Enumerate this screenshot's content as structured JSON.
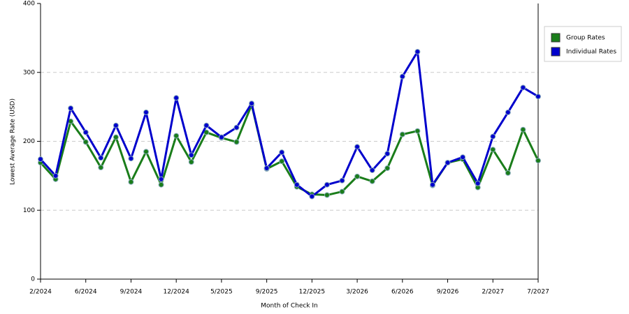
{
  "chart_data": {
    "type": "line",
    "categories": [
      "2/2024",
      null,
      null,
      "6/2024",
      null,
      null,
      "9/2024",
      null,
      null,
      "12/2024",
      null,
      null,
      "5/2025",
      null,
      null,
      "9/2025",
      null,
      null,
      "12/2025",
      null,
      null,
      "3/2026",
      null,
      null,
      "6/2026",
      null,
      null,
      "9/2026",
      null,
      null,
      "2/2027",
      null,
      null,
      "7/2027"
    ],
    "series": [
      {
        "name": "Group Rates",
        "color": "#1a7d1a",
        "values": [
          169,
          145,
          229,
          199,
          162,
          206,
          141,
          185,
          137,
          208,
          170,
          213,
          205,
          199,
          253,
          160,
          171,
          134,
          123,
          122,
          127,
          149,
          142,
          161,
          210,
          215,
          136,
          169,
          174,
          133,
          188,
          154,
          217,
          172
        ]
      },
      {
        "name": "Individual Rates",
        "color": "#0000cc",
        "values": [
          174,
          150,
          248,
          213,
          176,
          223,
          175,
          242,
          145,
          263,
          180,
          223,
          206,
          220,
          255,
          161,
          184,
          137,
          120,
          137,
          143,
          192,
          158,
          182,
          294,
          330,
          137,
          169,
          177,
          139,
          207,
          242,
          278,
          265
        ]
      }
    ],
    "ylim": [
      0,
      400
    ],
    "yticks": [
      0,
      100,
      200,
      300,
      400
    ],
    "grid": true,
    "x_label": "Month of Check In",
    "y_label": "Lowest Average Rate (USD)",
    "legend": "right"
  }
}
